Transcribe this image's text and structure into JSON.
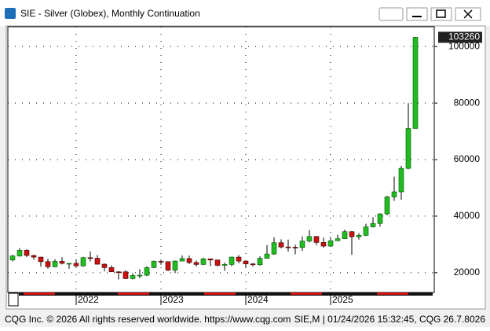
{
  "window": {
    "title": "SIE - Silver (Globex), Monthly Continuation",
    "footer_left": "CQG Inc. © 2026 All rights reserved worldwide. https://www.cqg.com",
    "footer_right": "SIE,M | 01/24/2026 15:32:45, CQG 26.7.8026"
  },
  "chart_data": {
    "type": "candlestick",
    "categories": [
      null,
      null,
      null,
      null,
      null,
      null,
      null,
      null,
      null,
      "2022",
      null,
      null,
      null,
      null,
      null,
      null,
      null,
      null,
      null,
      null,
      null,
      "2023",
      null,
      null,
      null,
      null,
      null,
      null,
      null,
      null,
      null,
      null,
      null,
      "2024",
      null,
      null,
      null,
      null,
      null,
      null,
      null,
      null,
      null,
      null,
      null,
      "2025",
      null,
      null,
      null,
      null,
      null,
      null,
      null,
      null,
      null,
      null,
      null,
      null
    ],
    "open": [
      24500,
      25900,
      27900,
      26100,
      25500,
      23900,
      22100,
      24000,
      23300,
      23300,
      22400,
      25300,
      25100,
      23000,
      21800,
      20300,
      20300,
      17900,
      19000,
      19100,
      21800,
      24000,
      23900,
      20900,
      24100,
      25000,
      23600,
      22900,
      24900,
      24500,
      22600,
      22900,
      25500,
      24100,
      23100,
      22800,
      25100,
      26600,
      30600,
      29100,
      29000,
      28900,
      31200,
      32800,
      30700,
      29400,
      31300,
      32000,
      34500,
      32700,
      33200,
      36200,
      37400,
      40800,
      46800,
      48600,
      56900,
      71000
    ],
    "high": [
      26400,
      28700,
      28300,
      26300,
      25600,
      24900,
      24800,
      25400,
      23400,
      24700,
      25600,
      27500,
      26200,
      23300,
      22600,
      20500,
      20900,
      19800,
      21200,
      22300,
      24300,
      24600,
      24000,
      24300,
      26100,
      26100,
      24300,
      25300,
      25000,
      24600,
      23600,
      25700,
      26200,
      24300,
      23400,
      25800,
      29800,
      32500,
      31800,
      31700,
      29900,
      32800,
      35100,
      33000,
      32400,
      32600,
      33400,
      35200,
      34700,
      34000,
      37300,
      39600,
      41000,
      47200,
      54000,
      57800,
      80000,
      103400
    ],
    "low": [
      24000,
      25700,
      25500,
      24600,
      22100,
      21400,
      21900,
      22900,
      21400,
      22000,
      22100,
      24000,
      22900,
      20500,
      20300,
      17600,
      17800,
      17600,
      18100,
      18800,
      21600,
      22800,
      20600,
      19900,
      24000,
      23000,
      22100,
      22700,
      22300,
      22200,
      20700,
      22300,
      23300,
      21900,
      22200,
      22500,
      25000,
      26300,
      28600,
      27500,
      26500,
      27700,
      30700,
      29700,
      28800,
      29400,
      31200,
      32000,
      26300,
      31700,
      33000,
      36000,
      36300,
      40300,
      45400,
      45800,
      56600,
      71000
    ],
    "close": [
      25900,
      27900,
      26100,
      25500,
      23900,
      22100,
      24000,
      23300,
      23300,
      22400,
      25300,
      25100,
      23000,
      21800,
      20300,
      20100,
      17900,
      19000,
      19100,
      21800,
      24000,
      23900,
      20900,
      24100,
      25000,
      23600,
      22900,
      24900,
      24500,
      22600,
      22900,
      25500,
      24100,
      23100,
      22800,
      25100,
      26600,
      30600,
      29100,
      29000,
      28900,
      31200,
      32800,
      30700,
      29400,
      31300,
      32000,
      34500,
      32700,
      33200,
      36200,
      37400,
      40800,
      46800,
      48600,
      56900,
      71000,
      103260
    ],
    "up_color": "#22bb22",
    "down_color": "#cc1111",
    "last_price": 103260,
    "ylim": [
      13000,
      107000
    ],
    "yticks": [
      20000,
      40000,
      60000,
      80000,
      100000
    ],
    "grid": true
  }
}
